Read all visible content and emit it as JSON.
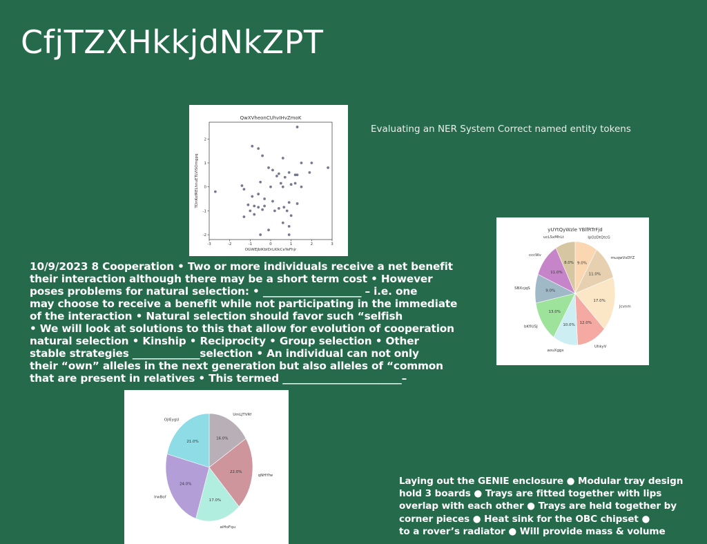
{
  "slide": {
    "title": "CfjTZXHkkjdNkZPT",
    "caption": "Evaluating an NER System Correct named entity tokens",
    "paragraph1_lines": [
      "10/9/2023 8 Cooperation • Two or more individuals receive a net benefit",
      "their interaction although there may be a short term cost • However",
      "poses problems for natural selection: • ___________________ – i.e. one",
      "may choose to receive a benefit while not participating in the immediate",
      "of the interaction • Natural selection should favor such “selfish",
      "• We will look at solutions to this that allow for evolution of cooperation",
      "natural selection • Kinship • Reciprocity • Group selection • Other",
      "stable strategies _____________selection • An individual can not only",
      "their “own” alleles in the next generation but also alleles of “common",
      "that are present in relatives • This termed _______________________–"
    ],
    "paragraph2_lines": [
      "Laying out the GENIE enclosure ● Modular tray design",
      "hold 3 boards ● Trays are fitted together with lips",
      "overlap with each other ● Trays are held together by",
      "corner pieces ● Heat sink for the OBC chipset ●",
      "to a rover’s radiator ● Will provide mass & volume"
    ]
  },
  "chart_data": [
    {
      "type": "scatter",
      "title": "QwXVheonCUhvIHvZmoK",
      "xlabel": "OGWEJbIKbIDrLKIkCeYeFhjr",
      "ylabel": "TDnKofRELhnuETLVISOmgpq",
      "xlim": [
        -3,
        3
      ],
      "ylim": [
        -2.2,
        2.7
      ],
      "xticks": [
        "-3",
        "-2",
        "-1",
        "0",
        "1",
        "2",
        "3"
      ],
      "yticks": [
        "-2",
        "-1",
        "0",
        "1",
        "2"
      ],
      "color": "#4a4e6a",
      "points": [
        [
          1.3,
          2.5
        ],
        [
          -0.9,
          1.7
        ],
        [
          -0.6,
          1.6
        ],
        [
          -0.4,
          1.3
        ],
        [
          0.6,
          1.2
        ],
        [
          1.5,
          1.0
        ],
        [
          2.0,
          1.0
        ],
        [
          2.8,
          0.8
        ],
        [
          -0.1,
          0.8
        ],
        [
          0.1,
          0.7
        ],
        [
          0.9,
          0.6
        ],
        [
          0.4,
          0.55
        ],
        [
          1.2,
          0.5
        ],
        [
          1.3,
          0.5
        ],
        [
          1.9,
          0.6
        ],
        [
          0.3,
          0.45
        ],
        [
          0.7,
          0.4
        ],
        [
          1.2,
          0.15
        ],
        [
          0.5,
          0.15
        ],
        [
          0.0,
          0.0
        ],
        [
          -0.5,
          0.2
        ],
        [
          -1.4,
          0.05
        ],
        [
          -1.3,
          -0.1
        ],
        [
          0.6,
          0.0
        ],
        [
          1.0,
          0.1
        ],
        [
          1.5,
          0.0
        ],
        [
          -2.7,
          -0.2
        ],
        [
          -0.6,
          -0.3
        ],
        [
          -0.9,
          -0.4
        ],
        [
          -0.3,
          -0.5
        ],
        [
          0.1,
          -0.6
        ],
        [
          0.9,
          -0.65
        ],
        [
          -1.1,
          -0.75
        ],
        [
          -0.8,
          -0.8
        ],
        [
          -0.6,
          -0.85
        ],
        [
          -0.3,
          -0.8
        ],
        [
          0.4,
          -0.9
        ],
        [
          -0.4,
          -0.95
        ],
        [
          0.65,
          -0.85
        ],
        [
          -1.0,
          -1.0
        ],
        [
          0.2,
          -1.0
        ],
        [
          0.8,
          -1.0
        ],
        [
          1.3,
          -0.7
        ],
        [
          -1.3,
          -1.25
        ],
        [
          -0.8,
          -1.15
        ],
        [
          1.0,
          -1.2
        ],
        [
          0.9,
          -1.65
        ],
        [
          0.6,
          -1.5
        ],
        [
          -0.1,
          -1.8
        ],
        [
          -0.5,
          -2.0
        ],
        [
          0.9,
          -2.0
        ]
      ]
    },
    {
      "type": "pie",
      "title": "yUYtQyWzle YBlfRTrFjd",
      "slices": [
        {
          "label": "IpOzDtQtcG",
          "value": 9.0,
          "color": "#fbd7b1"
        },
        {
          "label": "muqwVsDYZ",
          "value": 11.0,
          "color": "#e6d0b0"
        },
        {
          "label": "Jcvnm",
          "value": 17.0,
          "color": "#fbe6c6"
        },
        {
          "label": "UhkyV",
          "value": 12.0,
          "color": "#f4a9a3"
        },
        {
          "label": "aouXggx",
          "value": 10.0,
          "color": "#cdeff3"
        },
        {
          "label": "bKfIUSJ",
          "value": 13.0,
          "color": "#9de39b"
        },
        {
          "label": "SBXcjqS",
          "value": 9.0,
          "color": "#9fb9c7"
        },
        {
          "label": "cccWv",
          "value": 11.0,
          "color": "#c685c8"
        },
        {
          "label": "ucLSxMhLt",
          "value": 8.0,
          "color": "#d7c6a2"
        }
      ]
    },
    {
      "type": "pie",
      "title": "",
      "slices": [
        {
          "label": "UmLJTVRf",
          "value": 16.0,
          "color": "#b9afb6"
        },
        {
          "label": "qNHYfw",
          "value": 22.0,
          "color": "#ce959c"
        },
        {
          "label": "aiHoFqu",
          "value": 17.0,
          "color": "#b2eedf"
        },
        {
          "label": "IrwBof",
          "value": 24.0,
          "color": "#b39ed8"
        },
        {
          "label": "OjlEygU",
          "value": 21.0,
          "color": "#8edce6"
        }
      ]
    }
  ]
}
